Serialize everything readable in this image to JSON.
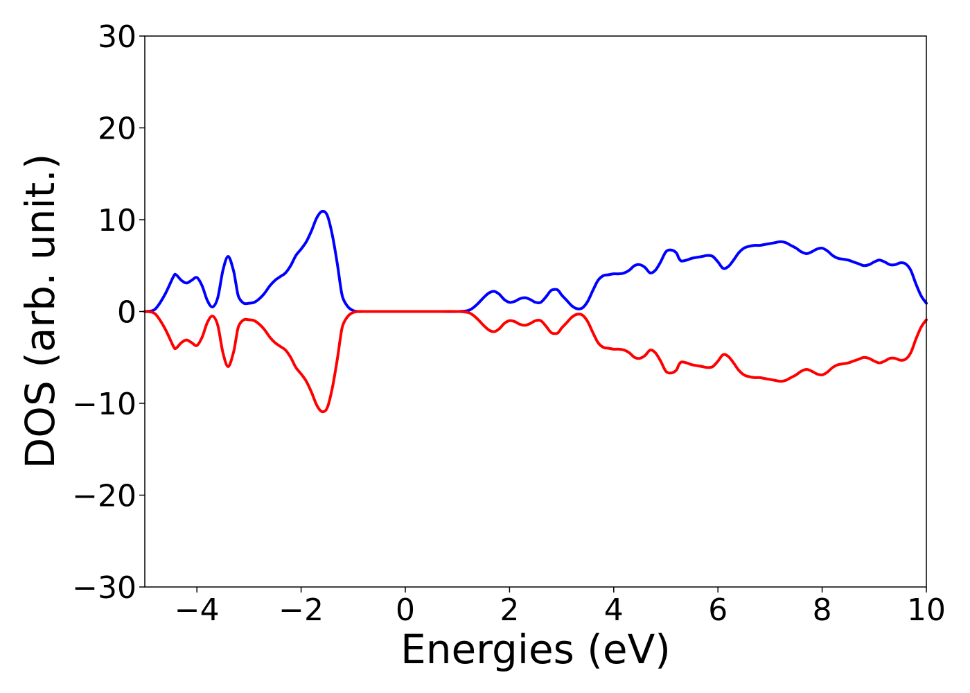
{
  "chart_data": {
    "type": "line",
    "title": "",
    "xlabel": "Energies (eV)",
    "ylabel": "DOS (arb. unit.)",
    "xlim": [
      -5,
      10
    ],
    "ylim": [
      -30,
      30
    ],
    "grid": false,
    "x_ticks": [
      -4,
      -2,
      0,
      2,
      4,
      6,
      8,
      10
    ],
    "x_tick_labels": [
      "−4",
      "−2",
      "0",
      "2",
      "4",
      "6",
      "8",
      "10"
    ],
    "y_ticks": [
      -30,
      -20,
      -10,
      0,
      10,
      20,
      30
    ],
    "y_tick_labels": [
      "−30",
      "−20",
      "−10",
      "0",
      "10",
      "20",
      "30"
    ],
    "series": [
      {
        "color": "#0000ff",
        "x": [
          -5.0,
          -4.85,
          -4.75,
          -4.6,
          -4.45,
          -4.4,
          -4.3,
          -4.2,
          -4.1,
          -4.0,
          -3.9,
          -3.8,
          -3.7,
          -3.6,
          -3.5,
          -3.4,
          -3.3,
          -3.25,
          -3.2,
          -3.1,
          -3.0,
          -2.9,
          -2.8,
          -2.7,
          -2.6,
          -2.5,
          -2.4,
          -2.3,
          -2.2,
          -2.1,
          -2.0,
          -1.9,
          -1.8,
          -1.7,
          -1.6,
          -1.5,
          -1.4,
          -1.3,
          -1.25,
          -1.2,
          -1.1,
          -1.0,
          -0.9,
          -0.8,
          -0.7,
          -0.6,
          -0.5,
          0.0,
          0.5,
          1.0,
          1.2,
          1.3,
          1.4,
          1.5,
          1.6,
          1.7,
          1.8,
          1.9,
          2.0,
          2.1,
          2.2,
          2.3,
          2.4,
          2.5,
          2.6,
          2.7,
          2.8,
          2.9,
          2.95,
          3.0,
          3.1,
          3.2,
          3.3,
          3.4,
          3.5,
          3.6,
          3.7,
          3.8,
          3.9,
          4.0,
          4.1,
          4.2,
          4.3,
          4.4,
          4.5,
          4.6,
          4.7,
          4.8,
          4.9,
          5.0,
          5.1,
          5.2,
          5.25,
          5.3,
          5.4,
          5.5,
          5.6,
          5.7,
          5.8,
          5.9,
          6.0,
          6.1,
          6.2,
          6.3,
          6.4,
          6.5,
          6.6,
          6.7,
          6.8,
          6.9,
          7.0,
          7.1,
          7.2,
          7.3,
          7.4,
          7.5,
          7.6,
          7.7,
          7.8,
          7.9,
          8.0,
          8.1,
          8.2,
          8.3,
          8.4,
          8.5,
          8.6,
          8.7,
          8.8,
          8.9,
          9.0,
          9.1,
          9.2,
          9.3,
          9.4,
          9.5,
          9.6,
          9.7,
          9.8,
          9.9,
          10.0
        ],
        "y": [
          0.0,
          0.1,
          0.6,
          2.0,
          3.8,
          4.0,
          3.4,
          3.1,
          3.4,
          3.7,
          2.8,
          1.2,
          0.5,
          1.5,
          4.5,
          6.0,
          4.5,
          3.0,
          1.6,
          0.9,
          0.9,
          1.0,
          1.4,
          2.0,
          2.8,
          3.4,
          3.8,
          4.2,
          5.0,
          6.1,
          6.8,
          7.6,
          8.8,
          10.2,
          10.9,
          10.5,
          8.3,
          5.0,
          3.0,
          1.5,
          0.5,
          0.1,
          0.0,
          0.0,
          0.0,
          0.0,
          0.0,
          0.0,
          0.0,
          0.0,
          0.1,
          0.4,
          0.9,
          1.5,
          2.0,
          2.2,
          1.9,
          1.3,
          1.0,
          1.1,
          1.4,
          1.5,
          1.3,
          1.0,
          1.0,
          1.6,
          2.3,
          2.4,
          2.2,
          1.8,
          1.2,
          0.6,
          0.3,
          0.4,
          1.1,
          2.3,
          3.4,
          3.9,
          4.0,
          4.1,
          4.1,
          4.2,
          4.5,
          5.0,
          5.1,
          4.8,
          4.2,
          4.5,
          5.4,
          6.5,
          6.7,
          6.4,
          5.8,
          5.5,
          5.6,
          5.8,
          5.9,
          6.0,
          6.1,
          6.0,
          5.4,
          4.7,
          4.9,
          5.6,
          6.4,
          6.9,
          7.1,
          7.2,
          7.2,
          7.3,
          7.4,
          7.5,
          7.6,
          7.5,
          7.2,
          6.9,
          6.5,
          6.3,
          6.5,
          6.8,
          6.9,
          6.6,
          6.1,
          5.8,
          5.7,
          5.6,
          5.4,
          5.2,
          5.0,
          5.1,
          5.4,
          5.6,
          5.4,
          5.1,
          5.1,
          5.3,
          5.2,
          4.5,
          3.0,
          1.7,
          0.9
        ]
      },
      {
        "color": "#ff0000",
        "x": [
          -5.0,
          -4.85,
          -4.75,
          -4.6,
          -4.45,
          -4.4,
          -4.3,
          -4.2,
          -4.1,
          -4.0,
          -3.9,
          -3.8,
          -3.7,
          -3.6,
          -3.5,
          -3.4,
          -3.3,
          -3.25,
          -3.2,
          -3.1,
          -3.0,
          -2.9,
          -2.8,
          -2.7,
          -2.6,
          -2.5,
          -2.4,
          -2.3,
          -2.2,
          -2.1,
          -2.0,
          -1.9,
          -1.8,
          -1.7,
          -1.6,
          -1.5,
          -1.4,
          -1.3,
          -1.25,
          -1.2,
          -1.1,
          -1.0,
          -0.9,
          -0.8,
          -0.7,
          -0.6,
          -0.5,
          0.0,
          0.5,
          1.0,
          1.2,
          1.3,
          1.4,
          1.5,
          1.6,
          1.7,
          1.8,
          1.9,
          2.0,
          2.1,
          2.2,
          2.3,
          2.4,
          2.5,
          2.6,
          2.7,
          2.8,
          2.9,
          2.95,
          3.0,
          3.1,
          3.2,
          3.3,
          3.4,
          3.5,
          3.6,
          3.7,
          3.8,
          3.9,
          4.0,
          4.1,
          4.2,
          4.3,
          4.4,
          4.5,
          4.6,
          4.7,
          4.8,
          4.9,
          5.0,
          5.1,
          5.2,
          5.25,
          5.3,
          5.4,
          5.5,
          5.6,
          5.7,
          5.8,
          5.9,
          6.0,
          6.1,
          6.2,
          6.3,
          6.4,
          6.5,
          6.6,
          6.7,
          6.8,
          6.9,
          7.0,
          7.1,
          7.2,
          7.3,
          7.4,
          7.5,
          7.6,
          7.7,
          7.8,
          7.9,
          8.0,
          8.1,
          8.2,
          8.3,
          8.4,
          8.5,
          8.6,
          8.7,
          8.8,
          8.9,
          9.0,
          9.1,
          9.2,
          9.3,
          9.4,
          9.5,
          9.6,
          9.7,
          9.8,
          9.9,
          10.0
        ],
        "y": [
          0.0,
          -0.1,
          -0.6,
          -2.0,
          -3.8,
          -4.0,
          -3.4,
          -3.1,
          -3.4,
          -3.7,
          -2.8,
          -1.2,
          -0.5,
          -1.5,
          -4.5,
          -6.0,
          -4.5,
          -3.0,
          -1.6,
          -0.9,
          -0.9,
          -1.0,
          -1.4,
          -2.0,
          -2.8,
          -3.4,
          -3.8,
          -4.2,
          -5.0,
          -6.1,
          -6.8,
          -7.6,
          -8.8,
          -10.2,
          -10.9,
          -10.5,
          -8.3,
          -5.0,
          -3.0,
          -1.5,
          -0.5,
          -0.1,
          0.0,
          0.0,
          0.0,
          0.0,
          0.0,
          0.0,
          0.0,
          0.0,
          -0.1,
          -0.4,
          -0.9,
          -1.5,
          -2.0,
          -2.2,
          -1.9,
          -1.3,
          -1.0,
          -1.1,
          -1.4,
          -1.5,
          -1.3,
          -1.0,
          -1.0,
          -1.6,
          -2.3,
          -2.4,
          -2.2,
          -1.8,
          -1.2,
          -0.6,
          -0.3,
          -0.4,
          -1.1,
          -2.3,
          -3.4,
          -3.9,
          -4.0,
          -4.1,
          -4.1,
          -4.2,
          -4.5,
          -5.0,
          -5.1,
          -4.8,
          -4.2,
          -4.5,
          -5.4,
          -6.5,
          -6.7,
          -6.4,
          -5.8,
          -5.5,
          -5.6,
          -5.8,
          -5.9,
          -6.0,
          -6.1,
          -6.0,
          -5.4,
          -4.7,
          -4.9,
          -5.6,
          -6.4,
          -6.9,
          -7.1,
          -7.2,
          -7.2,
          -7.3,
          -7.4,
          -7.5,
          -7.6,
          -7.5,
          -7.2,
          -6.9,
          -6.5,
          -6.3,
          -6.5,
          -6.8,
          -6.9,
          -6.6,
          -6.1,
          -5.8,
          -5.7,
          -5.6,
          -5.4,
          -5.2,
          -5.0,
          -5.1,
          -5.4,
          -5.6,
          -5.4,
          -5.1,
          -5.1,
          -5.3,
          -5.2,
          -4.5,
          -3.0,
          -1.7,
          -0.9
        ]
      }
    ]
  }
}
